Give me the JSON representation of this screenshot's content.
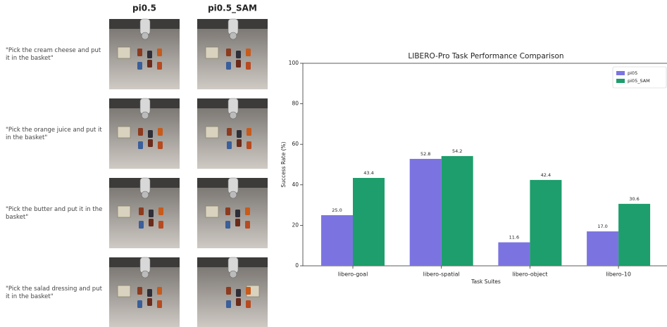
{
  "panel": {
    "columns": [
      "pi0.5",
      "pi0.5_SAM"
    ],
    "rows": [
      {
        "instruction": "\"Pick the cream cheese and put it in the basket\""
      },
      {
        "instruction": "\"Pick the orange juice and put it in the basket\""
      },
      {
        "instruction": "\"Pick the butter and put it in the basket\""
      },
      {
        "instruction": "\"Pick the salad dressing and put it in the basket\""
      }
    ]
  },
  "chart_data": {
    "type": "bar",
    "title": "LIBERO-Pro Task Performance Comparison",
    "x_label": "Task Suites",
    "y_label": "Success Rate (%)",
    "categories": [
      "libero-goal",
      "libero-spatial",
      "libero-object",
      "libero-10"
    ],
    "series": [
      {
        "name": "pi05",
        "color": "#7b74e0",
        "values": [
          25.0,
          52.8,
          11.6,
          17.0
        ],
        "value_labels": [
          "25.0",
          "52.8",
          "11.6",
          "17.0"
        ]
      },
      {
        "name": "pi05_SAM",
        "color": "#1d9e6c",
        "values": [
          43.4,
          54.2,
          42.4,
          30.6
        ],
        "value_labels": [
          "43.4",
          "54.2",
          "42.4",
          "30.6"
        ]
      }
    ],
    "ylim": [
      0,
      100
    ],
    "yticks": [
      0,
      20,
      40,
      60,
      80,
      100
    ],
    "grid": false,
    "legend": "upper right"
  }
}
